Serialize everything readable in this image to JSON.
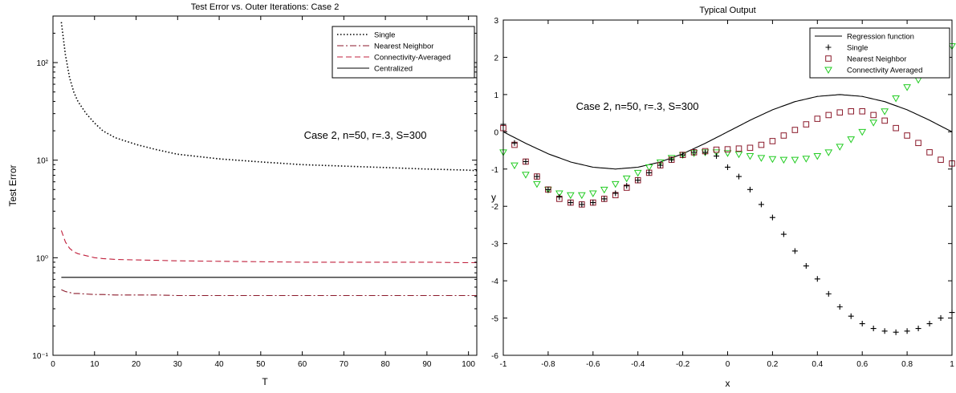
{
  "chart_data": [
    {
      "type": "line",
      "title": "Test Error vs. Outer Iterations:  Case 2",
      "xlabel": "T",
      "ylabel": "Test Error",
      "yscale": "log",
      "xlim": [
        0,
        102
      ],
      "ylim": [
        0.1,
        300
      ],
      "xticks": [
        0,
        10,
        20,
        30,
        40,
        50,
        60,
        70,
        80,
        90,
        100
      ],
      "xtick_labels": [
        "0",
        "10",
        "20",
        "30",
        "40",
        "50",
        "60",
        "70",
        "80",
        "90",
        "100"
      ],
      "yticks": [
        0.1,
        1,
        10,
        100
      ],
      "ytick_labels": [
        "10⁻¹",
        "10⁰",
        "10¹",
        "10²"
      ],
      "annotation": "Case 2, n=50, r=.3, S=300",
      "legend_position": "top-right",
      "grid": false,
      "x": [
        2,
        3,
        4,
        5,
        6,
        8,
        10,
        12,
        15,
        20,
        25,
        30,
        40,
        50,
        60,
        70,
        80,
        90,
        100,
        102
      ],
      "series": [
        {
          "name": "Single",
          "style": "dotted",
          "color": "#000000",
          "values": [
            260,
            120,
            70,
            50,
            40,
            30,
            24,
            20,
            17,
            14.5,
            12.8,
            11.5,
            10.3,
            9.6,
            9.0,
            8.7,
            8.4,
            8.1,
            7.9,
            7.8
          ]
        },
        {
          "name": "Nearest Neighbor",
          "style": "dashdot",
          "color": "#8b1a2b",
          "values": [
            0.47,
            0.45,
            0.44,
            0.43,
            0.43,
            0.425,
            0.42,
            0.42,
            0.415,
            0.415,
            0.415,
            0.41,
            0.41,
            0.41,
            0.41,
            0.41,
            0.41,
            0.41,
            0.41,
            0.41
          ]
        },
        {
          "name": "Connectivity-Averaged",
          "style": "dashed",
          "color": "#c0203c",
          "values": [
            1.9,
            1.45,
            1.25,
            1.15,
            1.1,
            1.05,
            1.0,
            0.98,
            0.96,
            0.95,
            0.94,
            0.93,
            0.92,
            0.91,
            0.9,
            0.9,
            0.9,
            0.9,
            0.89,
            0.89
          ]
        },
        {
          "name": "Centralized",
          "style": "solid",
          "color": "#000000",
          "values": [
            0.63,
            0.63,
            0.63,
            0.63,
            0.63,
            0.63,
            0.63,
            0.63,
            0.63,
            0.63,
            0.63,
            0.63,
            0.63,
            0.63,
            0.63,
            0.63,
            0.63,
            0.63,
            0.63,
            0.63
          ]
        }
      ]
    },
    {
      "type": "scatter",
      "title": "Typical Output",
      "xlabel": "x",
      "ylabel": "y",
      "xlim": [
        -1,
        1
      ],
      "ylim": [
        -6,
        3
      ],
      "xticks": [
        -1,
        -0.8,
        -0.6,
        -0.4,
        -0.2,
        0,
        0.2,
        0.4,
        0.6,
        0.8,
        1
      ],
      "xtick_labels": [
        "-1",
        "-0.8",
        "-0.6",
        "-0.4",
        "-0.2",
        "0",
        "0.2",
        "0.4",
        "0.6",
        "0.8",
        "1"
      ],
      "yticks": [
        -6,
        -5,
        -4,
        -3,
        -2,
        -1,
        0,
        1,
        2,
        3
      ],
      "ytick_labels": [
        "-6",
        "-5",
        "-4",
        "-3",
        "-2",
        "-1",
        "0",
        "1",
        "2",
        "3"
      ],
      "annotation": "Case 2, n=50, r=.3, S=300",
      "legend_position": "top-right",
      "grid": false,
      "regression": {
        "name": "Regression function",
        "style": "solid",
        "color": "#000000",
        "x": [
          -1,
          -0.9,
          -0.8,
          -0.7,
          -0.6,
          -0.5,
          -0.4,
          -0.3,
          -0.2,
          -0.1,
          0,
          0.1,
          0.2,
          0.3,
          0.4,
          0.5,
          0.6,
          0.7,
          0.8,
          0.9,
          1
        ],
        "y": [
          0,
          -0.31,
          -0.59,
          -0.81,
          -0.95,
          -1.0,
          -0.95,
          -0.81,
          -0.59,
          -0.31,
          0,
          0.31,
          0.59,
          0.81,
          0.95,
          1.0,
          0.95,
          0.81,
          0.59,
          0.31,
          0
        ]
      },
      "x": [
        -1,
        -0.95,
        -0.9,
        -0.85,
        -0.8,
        -0.75,
        -0.7,
        -0.65,
        -0.6,
        -0.55,
        -0.5,
        -0.45,
        -0.4,
        -0.35,
        -0.3,
        -0.25,
        -0.2,
        -0.15,
        -0.1,
        -0.05,
        0,
        0.05,
        0.1,
        0.15,
        0.2,
        0.25,
        0.3,
        0.35,
        0.4,
        0.45,
        0.5,
        0.55,
        0.6,
        0.65,
        0.7,
        0.75,
        0.8,
        0.85,
        0.9,
        0.95,
        1
      ],
      "series": [
        {
          "name": "Single",
          "marker": "plus",
          "color": "#000000",
          "values": [
            0.2,
            -0.3,
            -0.8,
            -1.2,
            -1.55,
            -1.75,
            -1.9,
            -1.95,
            -1.9,
            -1.8,
            -1.65,
            -1.45,
            -1.3,
            -1.1,
            -0.9,
            -0.75,
            -0.62,
            -0.55,
            -0.55,
            -0.65,
            -0.95,
            -1.2,
            -1.55,
            -1.95,
            -2.3,
            -2.75,
            -3.2,
            -3.6,
            -3.95,
            -4.35,
            -4.7,
            -4.95,
            -5.15,
            -5.28,
            -5.35,
            -5.38,
            -5.35,
            -5.28,
            -5.15,
            -5.0,
            -4.85
          ]
        },
        {
          "name": "Nearest Neighbor",
          "marker": "square",
          "color": "#8b1a2b",
          "values": [
            0.1,
            -0.35,
            -0.8,
            -1.2,
            -1.55,
            -1.8,
            -1.9,
            -1.95,
            -1.9,
            -1.8,
            -1.7,
            -1.5,
            -1.3,
            -1.1,
            -0.9,
            -0.75,
            -0.62,
            -0.55,
            -0.52,
            -0.48,
            -0.47,
            -0.45,
            -0.43,
            -0.35,
            -0.25,
            -0.1,
            0.05,
            0.2,
            0.35,
            0.45,
            0.52,
            0.55,
            0.55,
            0.45,
            0.3,
            0.1,
            -0.1,
            -0.3,
            -0.55,
            -0.75,
            -0.85
          ]
        },
        {
          "name": "Connectivity Averaged",
          "marker": "triangle-down",
          "color": "#22cc22",
          "values": [
            -0.55,
            -0.9,
            -1.15,
            -1.4,
            -1.55,
            -1.65,
            -1.7,
            -1.7,
            -1.65,
            -1.55,
            -1.4,
            -1.25,
            -1.1,
            -0.95,
            -0.82,
            -0.7,
            -0.62,
            -0.57,
            -0.55,
            -0.55,
            -0.57,
            -0.6,
            -0.65,
            -0.7,
            -0.73,
            -0.75,
            -0.75,
            -0.72,
            -0.65,
            -0.55,
            -0.4,
            -0.2,
            0.0,
            0.25,
            0.55,
            0.9,
            1.2,
            1.4,
            1.7,
            2.0,
            2.3
          ]
        }
      ]
    }
  ]
}
